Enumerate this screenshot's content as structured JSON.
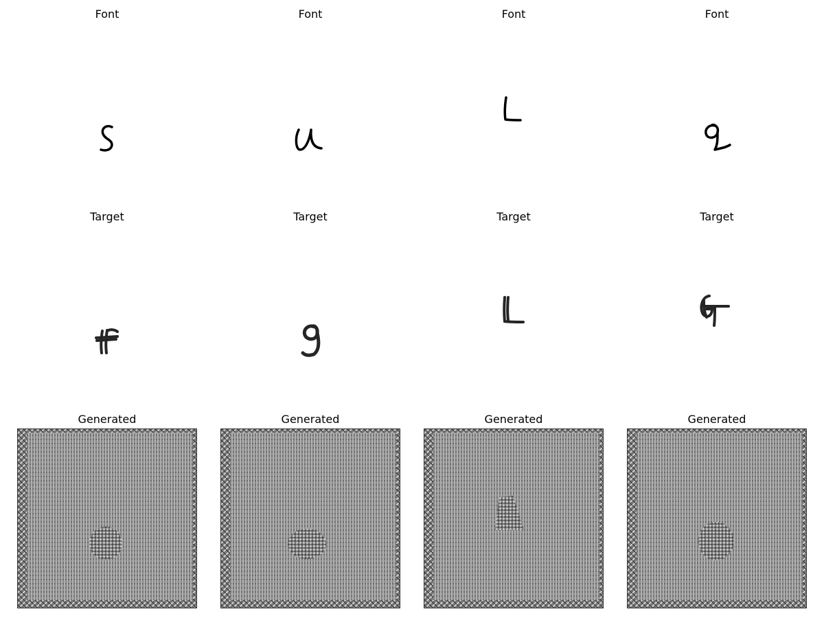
{
  "rows": [
    {
      "title": "Font"
    },
    {
      "title": "Target"
    },
    {
      "title": "Generated"
    }
  ],
  "cells": [
    [
      "s-glyph-icon",
      "u-glyph-icon",
      "l-glyph-icon",
      "q-glyph-icon"
    ],
    [
      "ff-glyph-icon",
      "g-glyph-icon",
      "ll-glyph-icon",
      "gt-glyph-icon"
    ],
    [
      "noise-texture",
      "noise-texture",
      "noise-texture",
      "noise-texture"
    ]
  ]
}
